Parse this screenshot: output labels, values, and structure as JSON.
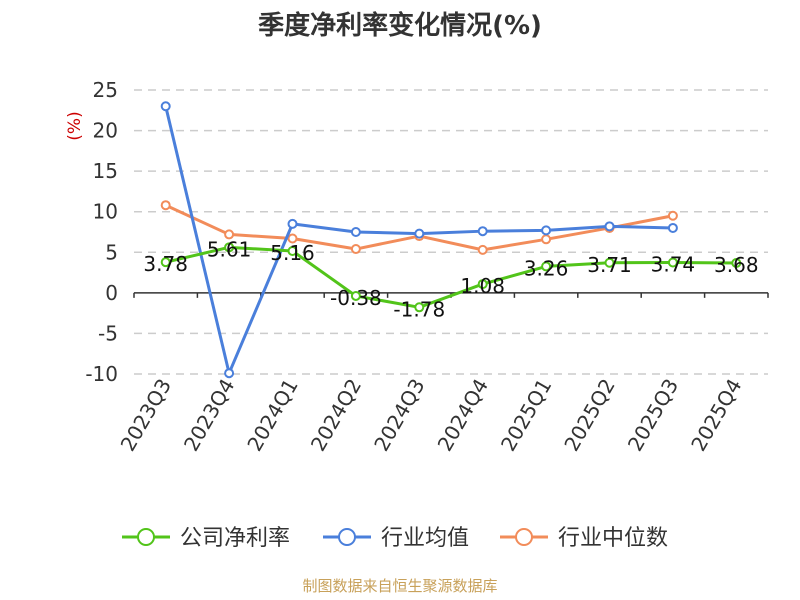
{
  "chart_data": {
    "type": "line",
    "title": "季度净利率变化情况(%)",
    "ylabel": "(%)",
    "ylim": [
      -10,
      25
    ],
    "yticks": [
      25,
      20,
      15,
      10,
      5,
      0,
      -5,
      -10
    ],
    "grid": true,
    "legend": "bottom",
    "categories": [
      "2023Q3",
      "2023Q4",
      "2024Q1",
      "2024Q2",
      "2024Q3",
      "2024Q4",
      "2025Q1",
      "2025Q2",
      "2025Q3",
      "2025Q4"
    ],
    "series": [
      {
        "name": "公司净利率",
        "color": "#52c41a",
        "values": [
          3.78,
          5.61,
          5.16,
          -0.38,
          -1.78,
          1.08,
          3.26,
          3.71,
          3.74,
          3.68
        ],
        "labels": [
          "3.78",
          "5.61",
          "5.16",
          "-0.38",
          "-1.78",
          "1.08",
          "3.26",
          "3.71",
          "3.74",
          "3.68"
        ]
      },
      {
        "name": "行业均值",
        "color": "#4a7fdb",
        "values": [
          23.0,
          -9.9,
          8.5,
          7.5,
          7.3,
          7.6,
          7.7,
          8.2,
          8.0,
          null
        ]
      },
      {
        "name": "行业中位数",
        "color": "#f28c5a",
        "values": [
          10.8,
          7.2,
          6.7,
          5.4,
          7.0,
          5.3,
          6.6,
          8.0,
          9.5,
          null
        ]
      }
    ]
  },
  "source": "制图数据来自恒生聚源数据库"
}
